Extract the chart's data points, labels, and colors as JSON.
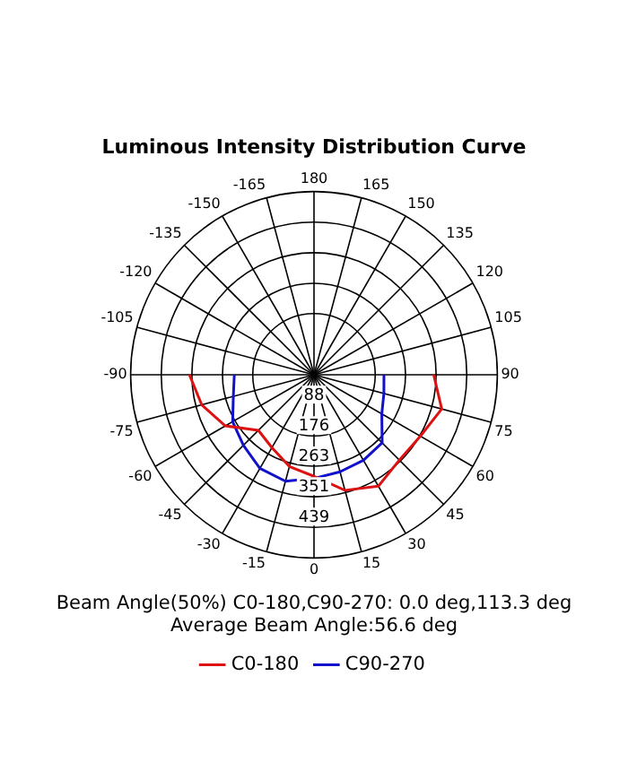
{
  "chart_data": {
    "type": "radar",
    "title": "Luminous Intensity Distribution Curve",
    "categories": [
      "180",
      "165",
      "150",
      "135",
      "120",
      "105",
      "90",
      "75",
      "60",
      "45",
      "30",
      "15",
      "0",
      "-15",
      "-30",
      "-45",
      "-60",
      "-75",
      "-90",
      "-105",
      "-120",
      "-135",
      "-150",
      "-165"
    ],
    "series": [
      {
        "name": "C0-180",
        "color": "#dd1111",
        "values": [
          null,
          null,
          null,
          null,
          null,
          null,
          344,
          380,
          353,
          347,
          370,
          344,
          292,
          273,
          242,
          226,
          294,
          334,
          358,
          null,
          null,
          null,
          null,
          null
        ]
      },
      {
        "name": "C90-270",
        "color": "#1111cc",
        "values": [
          null,
          null,
          null,
          null,
          null,
          null,
          201,
          208,
          225,
          277,
          284,
          289,
          298,
          317,
          311,
          287,
          270,
          240,
          229,
          null,
          null,
          null,
          null,
          null
        ]
      }
    ],
    "ylim": [
      0,
      527
    ],
    "yticks": [
      88,
      176,
      263,
      351,
      439
    ],
    "annotations": [
      "Beam Angle(50%) C0-180,C90-270: 0.0 deg,113.3 deg",
      "Average Beam Angle:56.6 deg"
    ],
    "legend": "bottom",
    "grid": true,
    "marker": "none",
    "line_style": "solid"
  }
}
